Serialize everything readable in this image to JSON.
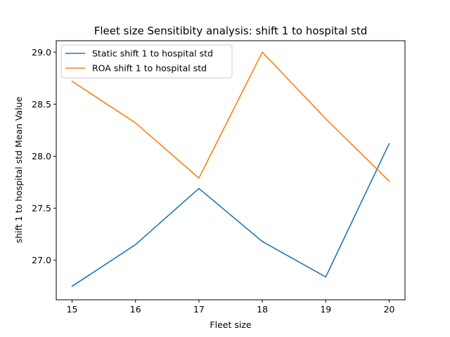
{
  "chart_data": {
    "type": "line",
    "title": "Fleet size Sensitibity analysis: shift 1 to hospital std",
    "xlabel": "Fleet size",
    "ylabel": "shift 1 to hospital std Mean Value",
    "x": [
      15,
      16,
      17,
      18,
      19,
      20
    ],
    "xticks": [
      "15",
      "16",
      "17",
      "18",
      "19",
      "20"
    ],
    "yticks": [
      "27.0",
      "27.5",
      "28.0",
      "28.5",
      "29.0"
    ],
    "xlim": [
      14.75,
      20.25
    ],
    "ylim": [
      26.62,
      29.11
    ],
    "grid": false,
    "legend_position": "upper-left",
    "series": [
      {
        "name": "Static shift 1 to hospital std",
        "color": "#1f77b4",
        "values": [
          26.75,
          27.15,
          27.69,
          27.18,
          26.84,
          28.12
        ]
      },
      {
        "name": "ROA shift 1 to hospital std",
        "color": "#ff7f0e",
        "values": [
          28.72,
          28.32,
          27.79,
          29.0,
          28.36,
          27.76
        ]
      }
    ]
  }
}
